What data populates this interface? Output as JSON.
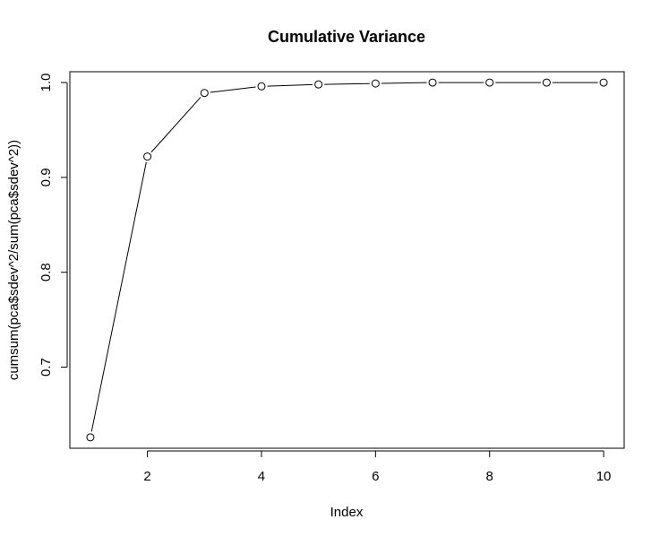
{
  "chart_data": {
    "type": "line",
    "title": "Cumulative Variance",
    "xlabel": "Index",
    "ylabel": "cumsum(pca$sdev^2/sum(pca$sdev^2))",
    "x": [
      1,
      2,
      3,
      4,
      5,
      6,
      7,
      8,
      9,
      10
    ],
    "series": [
      {
        "values": [
          0.626,
          0.922,
          0.989,
          0.996,
          0.998,
          0.999,
          1.0,
          1.0,
          1.0,
          1.0
        ]
      }
    ],
    "xlim": [
      0.64,
      10.36
    ],
    "ylim": [
      0.6145,
      1.0114
    ],
    "x_ticks": [
      2,
      4,
      6,
      8,
      10
    ],
    "x_tick_labels": [
      "2",
      "4",
      "6",
      "8",
      "10"
    ],
    "y_ticks": [
      0.7,
      0.8,
      0.9,
      1.0
    ],
    "y_tick_labels": [
      "0.7",
      "0.8",
      "0.9",
      "1.0"
    ],
    "grid": false,
    "marker": "open-circle",
    "line_color": "#000000"
  }
}
